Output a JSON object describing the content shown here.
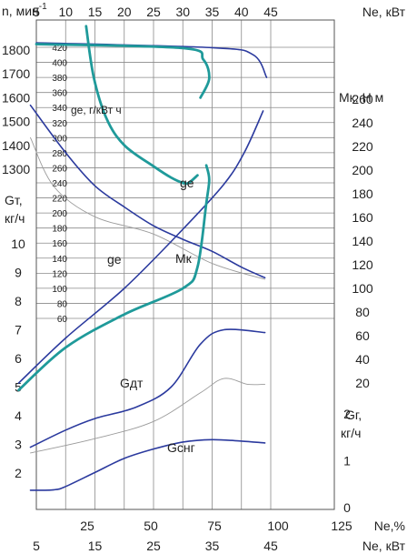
{
  "chart_data": {
    "type": "line",
    "title": "",
    "x_load_axis": {
      "label": "Ne,%",
      "ticks": [
        25,
        50,
        75,
        100,
        125
      ]
    },
    "x_power_axis_top": {
      "label": "Ne, кВт",
      "ticks": [
        5,
        10,
        15,
        20,
        25,
        30,
        35,
        40,
        45
      ]
    },
    "x_power_axis_bottom": {
      "label": "Ne, кВт",
      "ticks": [
        5,
        15,
        25,
        35,
        45
      ]
    },
    "axis_labels": {
      "n": "n, мин",
      "n_exp": "-1",
      "ge": "ge, г/кВт ч",
      "gt_line1": "Gт,",
      "gt_line2": "кг/ч",
      "mk": "Мк, Н м",
      "gg_line1": "Gг,",
      "gg_line2": "кг/ч"
    },
    "left_n_ticks": [
      1800,
      1700,
      1600,
      1500,
      1400,
      1300
    ],
    "left_gt_ticks": [
      10,
      9,
      8,
      7,
      6,
      5,
      4,
      3,
      2
    ],
    "ge_ticks": [
      420,
      400,
      380,
      360,
      340,
      320,
      300,
      280,
      260,
      240,
      220,
      200,
      180,
      160,
      140,
      120,
      100,
      80,
      60
    ],
    "mk_ticks": [
      260,
      240,
      220,
      200,
      180,
      160,
      140,
      120,
      100,
      80,
      60,
      40,
      20
    ],
    "gg_ticks": [
      2,
      1,
      0
    ],
    "curve_labels": {
      "ge_diesel": "ge",
      "ge_gas": "ge",
      "mk": "Мк",
      "g_dt": "Gдт",
      "g_sng": "Gснг"
    },
    "series": [
      {
        "key": "n_diesel",
        "axis": "n",
        "x": [
          5,
          35,
          42,
          44.3
        ],
        "y": [
          1830,
          1810,
          1780,
          1685
        ]
      },
      {
        "key": "n_gas",
        "axis": "n",
        "x": [
          5,
          30,
          33.5,
          34.5,
          33
        ],
        "y": [
          1825,
          1808,
          1760,
          1680,
          1600
        ]
      },
      {
        "key": "ge_diesel",
        "axis": "ge",
        "x": [
          4,
          10,
          15,
          20,
          25,
          30,
          35,
          40,
          44
        ],
        "y": [
          343,
          280,
          236,
          208,
          183,
          165,
          149,
          128,
          114
        ]
      },
      {
        "key": "ge_gas",
        "axis": "ge",
        "x": [
          13.5,
          14.8,
          17,
          20,
          25,
          28,
          30,
          31,
          32.5
        ],
        "y": [
          448,
          380,
          325,
          290,
          262,
          247,
          240,
          240,
          250
        ]
      },
      {
        "key": "ge_thin",
        "axis": "ge",
        "x": [
          4,
          8,
          15,
          25,
          35,
          44
        ],
        "y": [
          300,
          235,
          195,
          172,
          133,
          112
        ]
      },
      {
        "key": "mk_diesel",
        "axis": "mk",
        "x": [
          2,
          10,
          20,
          30,
          37,
          40.5,
          43.7
        ],
        "y": [
          20,
          58,
          100,
          150,
          188,
          215,
          250
        ]
      },
      {
        "key": "mk_gas",
        "axis": "mk",
        "x": [
          2,
          10,
          20,
          30,
          32.5,
          34,
          34.5,
          34
        ],
        "y": [
          14,
          50,
          78,
          100,
          118,
          172,
          192,
          204
        ]
      },
      {
        "key": "gt_thin",
        "axis": "gt",
        "x": [
          4,
          15,
          25,
          33,
          37,
          41,
          44
        ],
        "y": [
          2.7,
          3.2,
          3.8,
          4.8,
          5.3,
          5.1,
          5.1
        ]
      },
      {
        "key": "g_dt",
        "axis": "gt",
        "x": [
          4,
          10,
          15,
          22,
          28,
          33,
          37,
          44
        ],
        "y": [
          2.9,
          3.5,
          3.9,
          4.3,
          5.0,
          6.5,
          7.0,
          6.9
        ]
      },
      {
        "key": "g_sng",
        "axis": "gg",
        "x": [
          4,
          8,
          10,
          15,
          20,
          25,
          30,
          35,
          40,
          44
        ],
        "y": [
          0.37,
          0.38,
          0.45,
          0.75,
          1.05,
          1.25,
          1.4,
          1.45,
          1.42,
          1.38
        ]
      }
    ],
    "grid": true,
    "colors": {
      "diesel": "#2b3a9e",
      "gas": "#1f9a9a",
      "thin": "#9a9a9a"
    }
  }
}
